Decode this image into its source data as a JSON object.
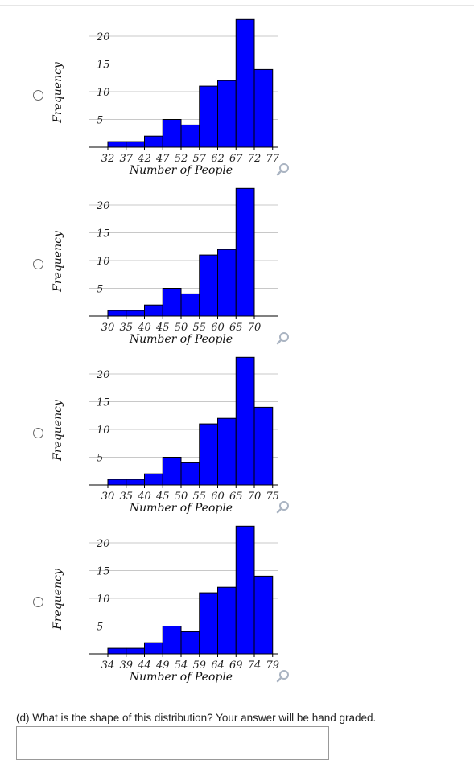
{
  "chart_data": [
    {
      "type": "bar",
      "ylabel": "Frequency",
      "xlabel": "Number of People",
      "y_ticks": [
        "20",
        "15",
        "10",
        "5"
      ],
      "y_tick_values": [
        20,
        15,
        10,
        5
      ],
      "x_ticks": [
        "32",
        "37",
        "42",
        "47",
        "52",
        "57",
        "62",
        "67",
        "72",
        "77"
      ],
      "values": [
        1,
        1,
        2,
        5,
        4,
        11,
        12,
        23,
        14
      ],
      "ylim": [
        0,
        23
      ],
      "bar_color": "#0000ff"
    },
    {
      "type": "bar",
      "ylabel": "Frequency",
      "xlabel": "Number of People",
      "y_ticks": [
        "20",
        "15",
        "10",
        "5"
      ],
      "y_tick_values": [
        20,
        15,
        10,
        5
      ],
      "x_ticks": [
        "30",
        "35",
        "40",
        "45",
        "50",
        "55",
        "60",
        "65",
        "70"
      ],
      "values": [
        1,
        1,
        2,
        5,
        4,
        11,
        12,
        23
      ],
      "ylim": [
        0,
        23
      ],
      "bar_color": "#0000ff"
    },
    {
      "type": "bar",
      "ylabel": "Frequency",
      "xlabel": "Number of People",
      "y_ticks": [
        "20",
        "15",
        "10",
        "5"
      ],
      "y_tick_values": [
        20,
        15,
        10,
        5
      ],
      "x_ticks": [
        "30",
        "35",
        "40",
        "45",
        "50",
        "55",
        "60",
        "65",
        "70",
        "75"
      ],
      "values": [
        1,
        1,
        2,
        5,
        4,
        11,
        12,
        23,
        14
      ],
      "ylim": [
        0,
        23
      ],
      "bar_color": "#0000ff"
    },
    {
      "type": "bar",
      "ylabel": "Frequency",
      "xlabel": "Number of People",
      "y_ticks": [
        "20",
        "15",
        "10",
        "5"
      ],
      "y_tick_values": [
        20,
        15,
        10,
        5
      ],
      "x_ticks": [
        "34",
        "39",
        "44",
        "49",
        "54",
        "59",
        "64",
        "69",
        "74",
        "79"
      ],
      "values": [
        1,
        1,
        2,
        5,
        4,
        11,
        12,
        23,
        14
      ],
      "ylim": [
        0,
        23
      ],
      "bar_color": "#0000ff"
    }
  ],
  "question": {
    "text": "(d) What is the shape of this distribution? Your answer will be hand graded.",
    "answer_value": ""
  },
  "icons": {
    "radio": "radio-button-icon",
    "zoom": "magnifier-icon"
  },
  "colors": {
    "bar": "#0000ff",
    "gridline": "#c8c8c8",
    "zoom_icon": "#aab4c2"
  }
}
